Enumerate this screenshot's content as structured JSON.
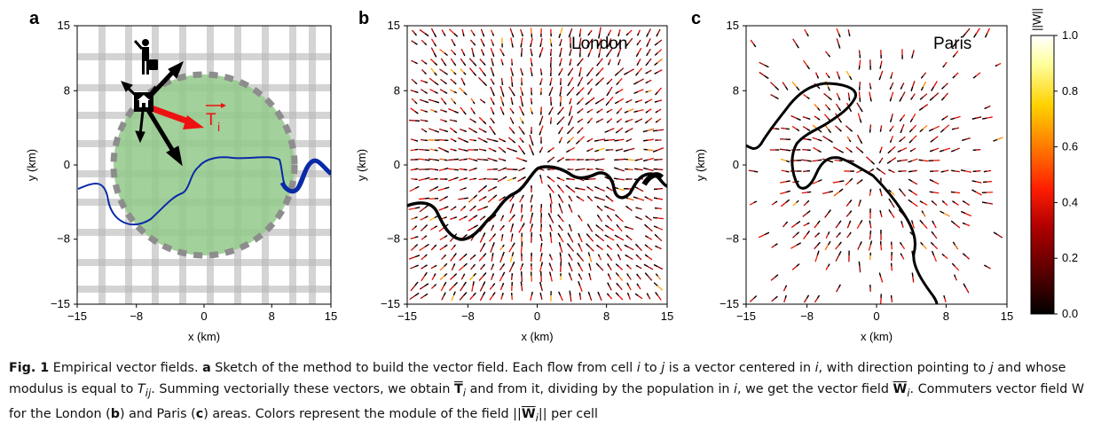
{
  "figure": {
    "panels": [
      {
        "letter": "a",
        "xlabel": "x (km)",
        "ylabel": "y (km)",
        "tick_labels": [
          "−15",
          "−8",
          "0",
          "8",
          "15"
        ],
        "vector_label": "T",
        "vector_subscript": "i"
      },
      {
        "letter": "b",
        "xlabel": "x (km)",
        "ylabel": "y (km)",
        "tick_labels": [
          "−15",
          "−8",
          "0",
          "8",
          "15"
        ],
        "city": "London"
      },
      {
        "letter": "c",
        "xlabel": "x (km)",
        "ylabel": "y (km)",
        "tick_labels": [
          "−15",
          "−8",
          "0",
          "8",
          "15"
        ],
        "city": "Paris"
      }
    ],
    "colorbar": {
      "label": "||W||",
      "ticks": [
        "0.0",
        "0.2",
        "0.4",
        "0.6",
        "0.8",
        "1.0"
      ],
      "colormap": [
        "#000000",
        "#5a0000",
        "#b40000",
        "#ff1e00",
        "#ff7a00",
        "#ffd200",
        "#ffffa0",
        "#ffffff"
      ]
    },
    "colors": {
      "circle_fill": "#93c98a",
      "river_blue": "#0a2aa8",
      "arrow_red": "#ee1111",
      "grid_gray": "#b8b8b8"
    }
  },
  "caption": {
    "lead": "Fig. 1",
    "s1": " Empirical vector fields. ",
    "a": "a",
    "s2": " Sketch of the method to build the vector field. Each flow from cell ",
    "i1": "i",
    "s3": " to ",
    "j1": "j",
    "s4": " is a vector centered in ",
    "i2": "i",
    "s5": ", with direction pointing to ",
    "j2": "j",
    "s6": " and whose modulus is equal to ",
    "Tij": "T",
    "ij": "ij",
    "s7": ". Summing vectorially these vectors, we obtain ",
    "T": "T",
    "Tsub": "i",
    "s8": " and from it, dividing by the population in ",
    "i3": "i",
    "s9": ", we get the vector field ",
    "W": "W",
    "Wsub": "i",
    "s10": ". Commuters vector field W for the London (",
    "b": "b",
    "s11": ") and Paris (",
    "c": "c",
    "s12": ") areas. Colors represent the module of the field ||",
    "W2": "W",
    "W2sub": "i",
    "s13": "|| per cell"
  }
}
